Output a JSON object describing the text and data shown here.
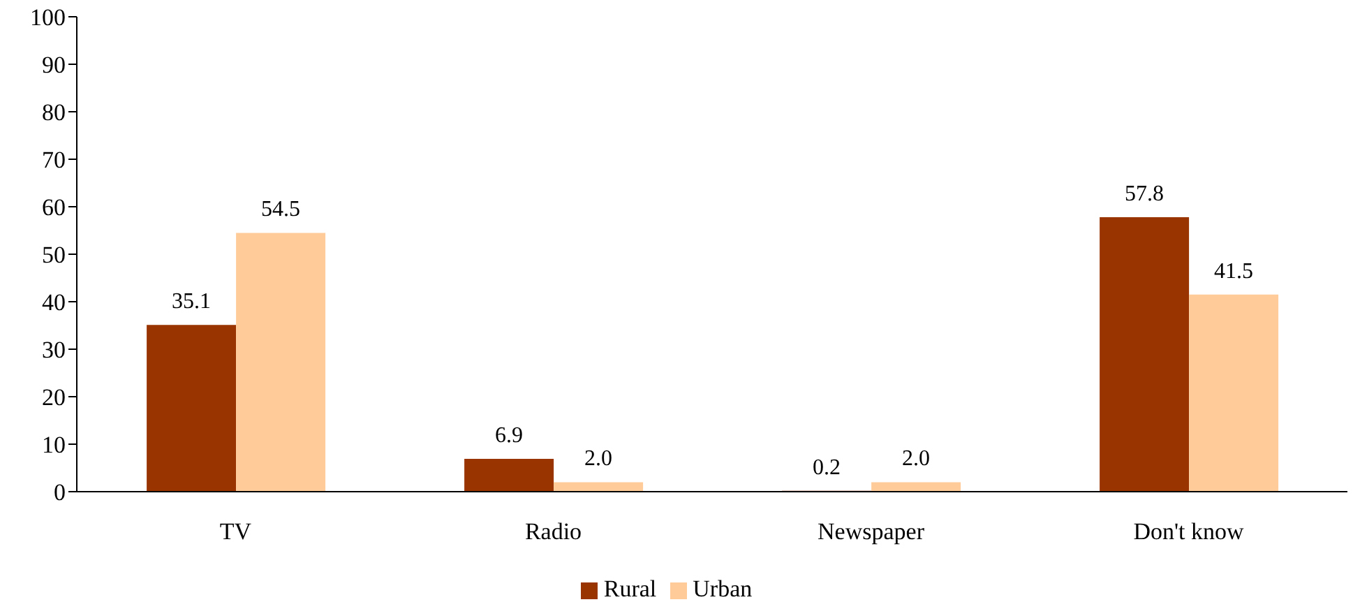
{
  "chart_data": {
    "type": "bar",
    "categories": [
      "TV",
      "Radio",
      "Newspaper",
      "Don't know"
    ],
    "series": [
      {
        "name": "Rural",
        "color": "#993300",
        "values": [
          35.1,
          6.9,
          0.2,
          57.8
        ],
        "value_labels": [
          "35.1",
          "6.9",
          "0.2",
          "57.8"
        ]
      },
      {
        "name": "Urban",
        "color": "#ffcc99",
        "values": [
          54.5,
          2.0,
          2.0,
          41.5
        ],
        "value_labels": [
          "54.5",
          "2.0",
          "2.0",
          "41.5"
        ]
      }
    ],
    "ylim": [
      0,
      100
    ],
    "yticks": [
      0,
      10,
      20,
      30,
      40,
      50,
      60,
      70,
      80,
      90,
      100
    ],
    "grid": false,
    "legend": "bottom"
  }
}
